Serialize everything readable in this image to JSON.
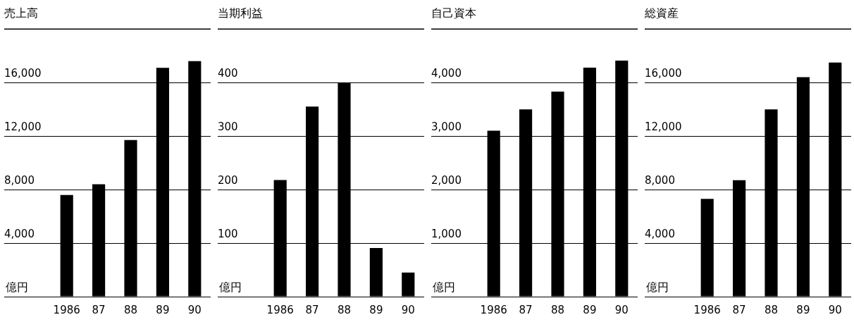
{
  "chart_data": [
    {
      "type": "bar",
      "title": "売上高",
      "ylabel": "億円",
      "categories": [
        "1986",
        "87",
        "88",
        "89",
        "90"
      ],
      "values": [
        7600,
        8400,
        11700,
        17100,
        17600
      ],
      "color": "#000000",
      "ylim": [
        0,
        20000
      ],
      "yticks": [
        {
          "value": 0,
          "label": null
        },
        {
          "value": 4000,
          "label": "4,000"
        },
        {
          "value": 8000,
          "label": "8,000"
        },
        {
          "value": 12000,
          "label": "12,000"
        },
        {
          "value": 16000,
          "label": "16,000"
        }
      ],
      "grid": "y",
      "legend": false
    },
    {
      "type": "bar",
      "title": "当期利益",
      "ylabel": "億円",
      "categories": [
        "1986",
        "87",
        "88",
        "89",
        "90"
      ],
      "values": [
        218,
        355,
        400,
        91,
        45
      ],
      "color": "#000000",
      "ylim": [
        0,
        500
      ],
      "yticks": [
        {
          "value": 0,
          "label": null
        },
        100,
        200,
        300,
        400
      ],
      "grid": "y",
      "legend": false
    },
    {
      "type": "bar",
      "title": "自己資本",
      "ylabel": "億円",
      "categories": [
        "1986",
        "87",
        "88",
        "89",
        "90"
      ],
      "values": [
        3100,
        3500,
        3830,
        4280,
        4410
      ],
      "color": "#000000",
      "ylim": [
        0,
        5000
      ],
      "yticks": [
        {
          "value": 0,
          "label": null
        },
        {
          "value": 1000,
          "label": "1,000"
        },
        {
          "value": 2000,
          "label": "2,000"
        },
        {
          "value": 3000,
          "label": "3,000"
        },
        {
          "value": 4000,
          "label": "4,000"
        }
      ],
      "grid": "y",
      "legend": false
    },
    {
      "type": "bar",
      "title": "総資産",
      "ylabel": "億円",
      "categories": [
        "1986",
        "87",
        "88",
        "89",
        "90"
      ],
      "values": [
        7300,
        8700,
        14000,
        16400,
        17500
      ],
      "color": "#000000",
      "ylim": [
        0,
        20000
      ],
      "yticks": [
        {
          "value": 0,
          "label": null
        },
        {
          "value": 4000,
          "label": "4,000"
        },
        {
          "value": 8000,
          "label": "8,000"
        },
        {
          "value": 12000,
          "label": "12,000"
        },
        {
          "value": 16000,
          "label": "16,000"
        }
      ],
      "grid": "y",
      "legend": false
    }
  ]
}
